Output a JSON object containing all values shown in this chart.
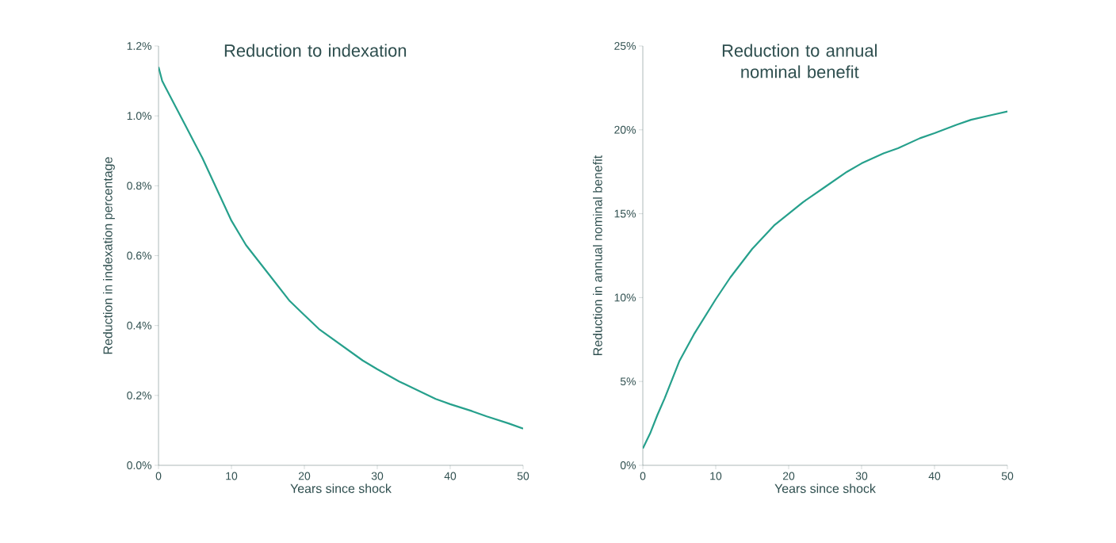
{
  "chart_data": [
    {
      "type": "line",
      "title": "Reduction to indexation",
      "xlabel": "Years since shock",
      "ylabel": "Reduction in indexation percentage",
      "color": "#26a08c",
      "x": [
        0,
        0.5,
        1,
        2,
        3,
        4,
        5,
        6,
        8,
        10,
        12,
        15,
        18,
        20,
        22,
        25,
        28,
        30,
        33,
        35,
        38,
        40,
        43,
        45,
        48,
        50
      ],
      "values": [
        1.14,
        1.1,
        1.08,
        1.04,
        1.0,
        0.96,
        0.92,
        0.88,
        0.79,
        0.7,
        0.63,
        0.55,
        0.47,
        0.43,
        0.39,
        0.345,
        0.3,
        0.275,
        0.24,
        0.22,
        0.19,
        0.175,
        0.155,
        0.14,
        0.12,
        0.105
      ],
      "xlim": [
        0,
        50
      ],
      "ylim": [
        0,
        1.2
      ],
      "xticks": [
        0,
        10,
        20,
        30,
        40,
        50
      ],
      "yticks": [
        {
          "value": 0,
          "label": "0.0%"
        },
        {
          "value": 0.2,
          "label": "0.2%"
        },
        {
          "value": 0.4,
          "label": "0.4%"
        },
        {
          "value": 0.6,
          "label": "0.6%"
        },
        {
          "value": 0.8,
          "label": "0.8%"
        },
        {
          "value": 1.0,
          "label": "1.0%"
        },
        {
          "value": 1.2,
          "label": "1.2%"
        }
      ]
    },
    {
      "type": "line",
      "title": "Reduction to annual nominal benefit",
      "xlabel": "Years since shock",
      "ylabel": "Reduction in annual nominal benefit",
      "color": "#26a08c",
      "x": [
        0,
        1,
        2,
        3,
        5,
        7,
        10,
        12,
        15,
        18,
        20,
        22,
        25,
        28,
        30,
        33,
        35,
        38,
        40,
        43,
        45,
        48,
        50
      ],
      "values": [
        1.0,
        1.9,
        3.0,
        4.0,
        6.2,
        7.8,
        9.9,
        11.2,
        12.9,
        14.3,
        15.0,
        15.7,
        16.6,
        17.5,
        18.0,
        18.6,
        18.9,
        19.5,
        19.8,
        20.3,
        20.6,
        20.9,
        21.1
      ],
      "xlim": [
        0,
        50
      ],
      "ylim": [
        0,
        25
      ],
      "xticks": [
        0,
        10,
        20,
        30,
        40,
        50
      ],
      "yticks": [
        {
          "value": 0,
          "label": "0%"
        },
        {
          "value": 5,
          "label": "5%"
        },
        {
          "value": 10,
          "label": "10%"
        },
        {
          "value": 15,
          "label": "15%"
        },
        {
          "value": 20,
          "label": "20%"
        },
        {
          "value": 25,
          "label": "25%"
        }
      ]
    }
  ]
}
